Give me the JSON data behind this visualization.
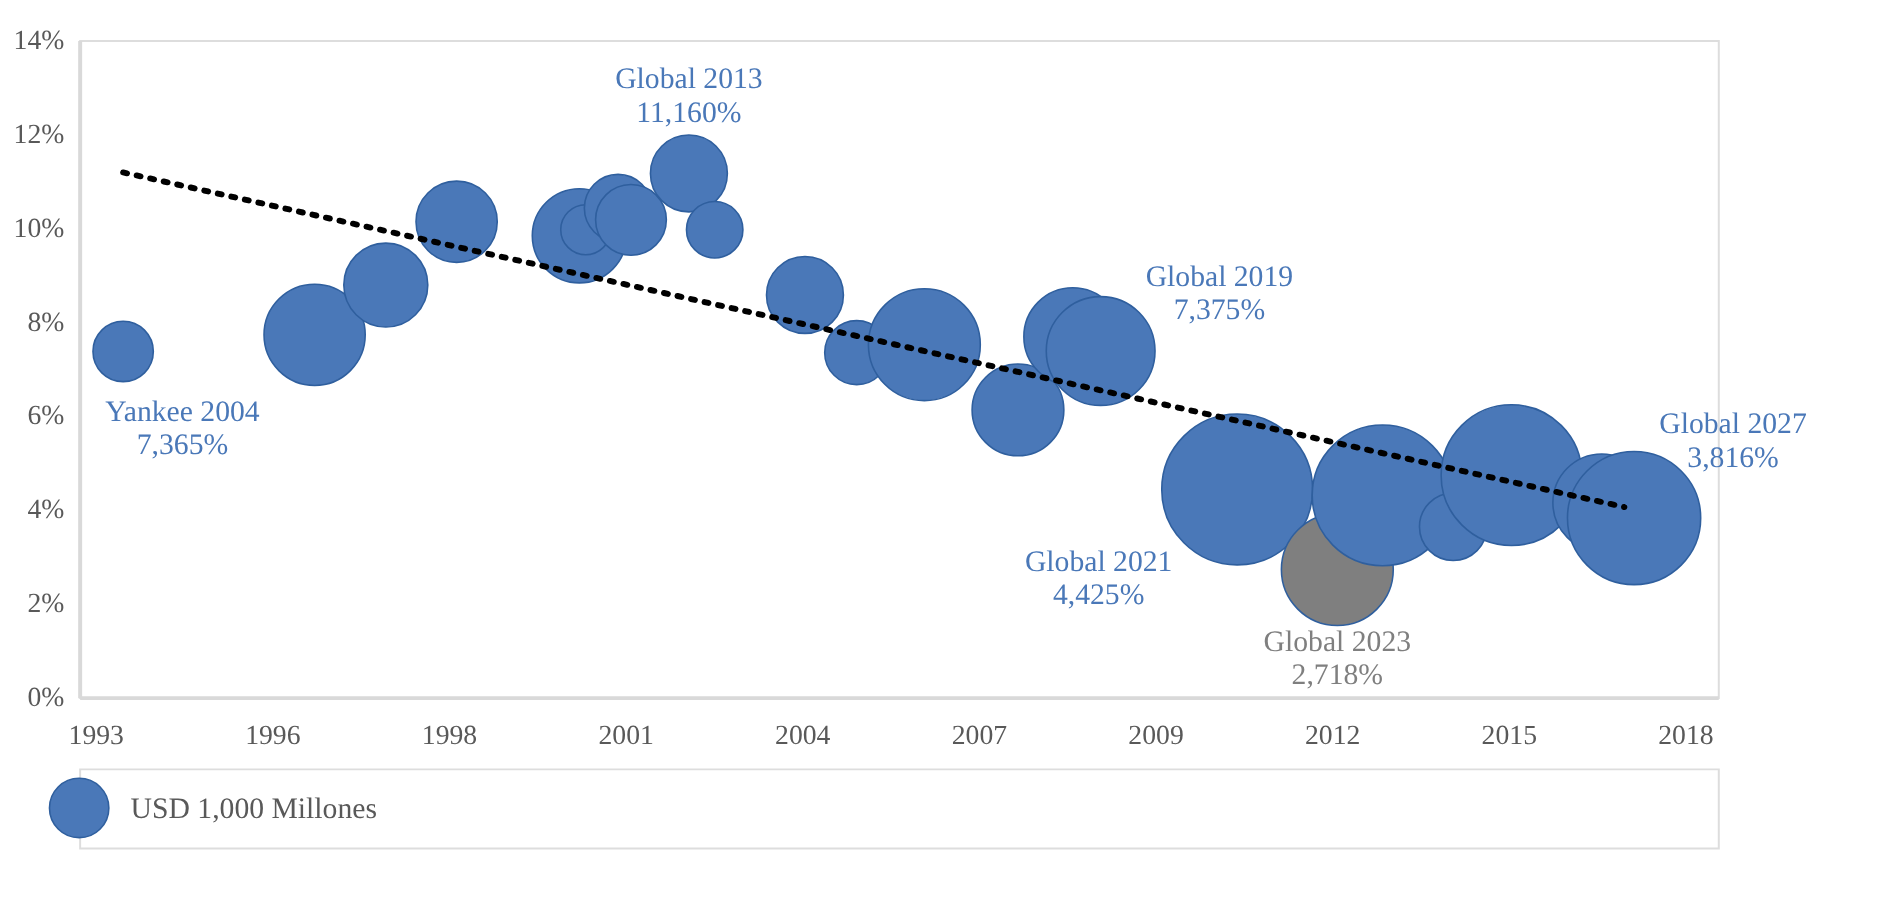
{
  "chart_data": {
    "type": "bubble",
    "xlim": [
      "1993-04-01",
      "2018-08-25"
    ],
    "xticks": [
      {
        "value": "1993-07-01",
        "label": "1993"
      },
      {
        "value": "1996-03-27",
        "label": "1996"
      },
      {
        "value": "1998-12-22",
        "label": "1998"
      },
      {
        "value": "2001-09-17",
        "label": "2001"
      },
      {
        "value": "2004-06-13",
        "label": "2004"
      },
      {
        "value": "2007-03-10",
        "label": "2007"
      },
      {
        "value": "2009-12-04",
        "label": "2009"
      },
      {
        "value": "2012-08-30",
        "label": "2012"
      },
      {
        "value": "2015-05-27",
        "label": "2015"
      },
      {
        "value": "2018-02-20",
        "label": "2018"
      }
    ],
    "ylim": [
      0,
      14
    ],
    "yticks": [
      {
        "value": 0,
        "label": "0%"
      },
      {
        "value": 2,
        "label": "2%"
      },
      {
        "value": 4,
        "label": "4%"
      },
      {
        "value": 6,
        "label": "6%"
      },
      {
        "value": 8,
        "label": "8%"
      },
      {
        "value": 10,
        "label": "10%"
      },
      {
        "value": 12,
        "label": "12%"
      },
      {
        "value": 14,
        "label": "14%"
      }
    ],
    "grid": false,
    "legend": "bottom left",
    "series": [
      {
        "name": "USD 1,000 Millones",
        "color": "#4a78b8",
        "x": [
          "1993-12-06",
          "1996-11-24",
          "1998-01-01",
          "1999-02-06",
          "2001-01-01",
          "2001-02-06",
          "2001-08-08",
          "2001-10-20",
          "2002-09-13",
          "2003-02-06",
          "2004-07-01",
          "2005-04-20",
          "2006-05-08",
          "2007-10-20",
          "2008-08-25",
          "2009-01-30",
          "2011-03-14",
          "2012-10-01",
          "2013-06-14",
          "2014-07-19",
          "2015-06-14",
          "2016-11-06",
          "2017-05-08"
        ],
        "values": [
          7.365,
          7.72,
          8.78,
          10.13,
          9.83,
          9.96,
          10.42,
          10.17,
          11.16,
          9.96,
          8.57,
          7.34,
          7.51,
          6.12,
          7.68,
          7.375,
          4.425,
          2.718,
          4.3,
          3.63,
          4.73,
          4.14,
          3.816
        ],
        "sizes": [
          0.16,
          0.45,
          0.31,
          0.29,
          0.39,
          0.11,
          0.2,
          0.22,
          0.26,
          0.14,
          0.26,
          0.18,
          0.55,
          0.37,
          0.42,
          0.52,
          1,
          0.55,
          0.87,
          0.2,
          0.87,
          0.42,
          0.78
        ],
        "colors": [
          "#4a78b8",
          "#4a78b8",
          "#4a78b8",
          "#4a78b8",
          "#4a78b8",
          "#4a78b8",
          "#4a78b8",
          "#4a78b8",
          "#4a78b8",
          "#4a78b8",
          "#4a78b8",
          "#4a78b8",
          "#4a78b8",
          "#4a78b8",
          "#4a78b8",
          "#4a78b8",
          "#4a78b8",
          "#7f7f7f",
          "#4a78b8",
          "#4a78b8",
          "#4a78b8",
          "#4a78b8",
          "#4a78b8"
        ]
      },
      {
        "type": "line",
        "line_style": "dotted",
        "color": "#000000",
        "x": [
          "1993-12-06",
          "2017-03-14"
        ],
        "values": [
          11.18,
          4.05
        ]
      }
    ],
    "annotations": [
      {
        "text": "Yankee 2004\n7,365%",
        "x": "1993-12-06",
        "y": 7.365
      },
      {
        "text": "Global 2013\n11,160%",
        "x": "2002-09-13",
        "y": 11.16
      },
      {
        "text": "Global 2019\n7,375%",
        "x": "2009-01-30",
        "y": 7.375
      },
      {
        "text": "Global 2021\n4,425%",
        "x": "2011-03-14",
        "y": 4.425
      },
      {
        "text": "Global 2023\n2,718%",
        "x": "2012-10-01",
        "y": 2.718
      },
      {
        "text": "Global 2027\n3,816%",
        "x": "2017-05-08",
        "y": 3.816
      }
    ]
  }
}
